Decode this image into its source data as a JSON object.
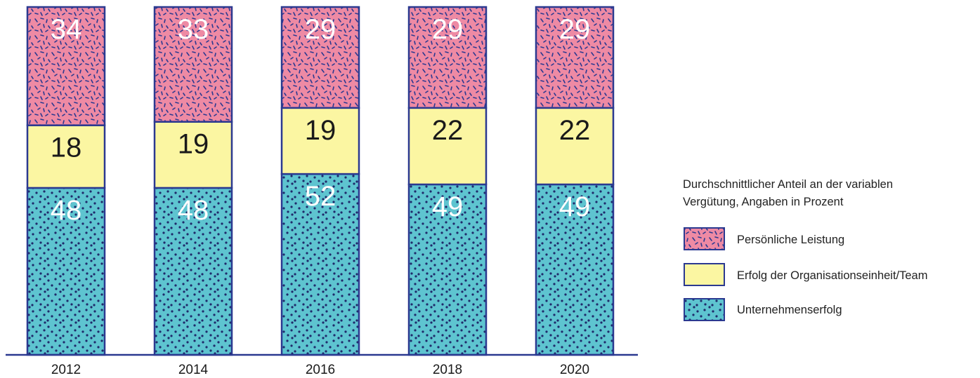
{
  "chart_data": {
    "type": "bar",
    "stacked": true,
    "categories": [
      "2012",
      "2014",
      "2016",
      "2018",
      "2020"
    ],
    "series": [
      {
        "name": "Unternehmenserfolg",
        "values": [
          48,
          48,
          52,
          49,
          49
        ]
      },
      {
        "name": "Erfolg der Organisationseinheit/Team",
        "values": [
          18,
          19,
          19,
          22,
          22
        ]
      },
      {
        "name": "Persönliche Leistung",
        "values": [
          34,
          33,
          29,
          29,
          29
        ]
      }
    ],
    "legend_title_lines": [
      "Durchschnittlicher Anteil an der variablen",
      "Vergütung, Angaben in Prozent"
    ],
    "legend_placement": "right",
    "ylim": [
      0,
      100
    ],
    "grid": false,
    "colors": {
      "Unternehmenserfolg": "#5ec4d0",
      "Erfolg der Organisationseinheit/Team": "#fbf6a2",
      "Persönliche Leistung": "#ee8aa4",
      "outline": "#2b3990",
      "dots": "#1f2a6b"
    }
  }
}
